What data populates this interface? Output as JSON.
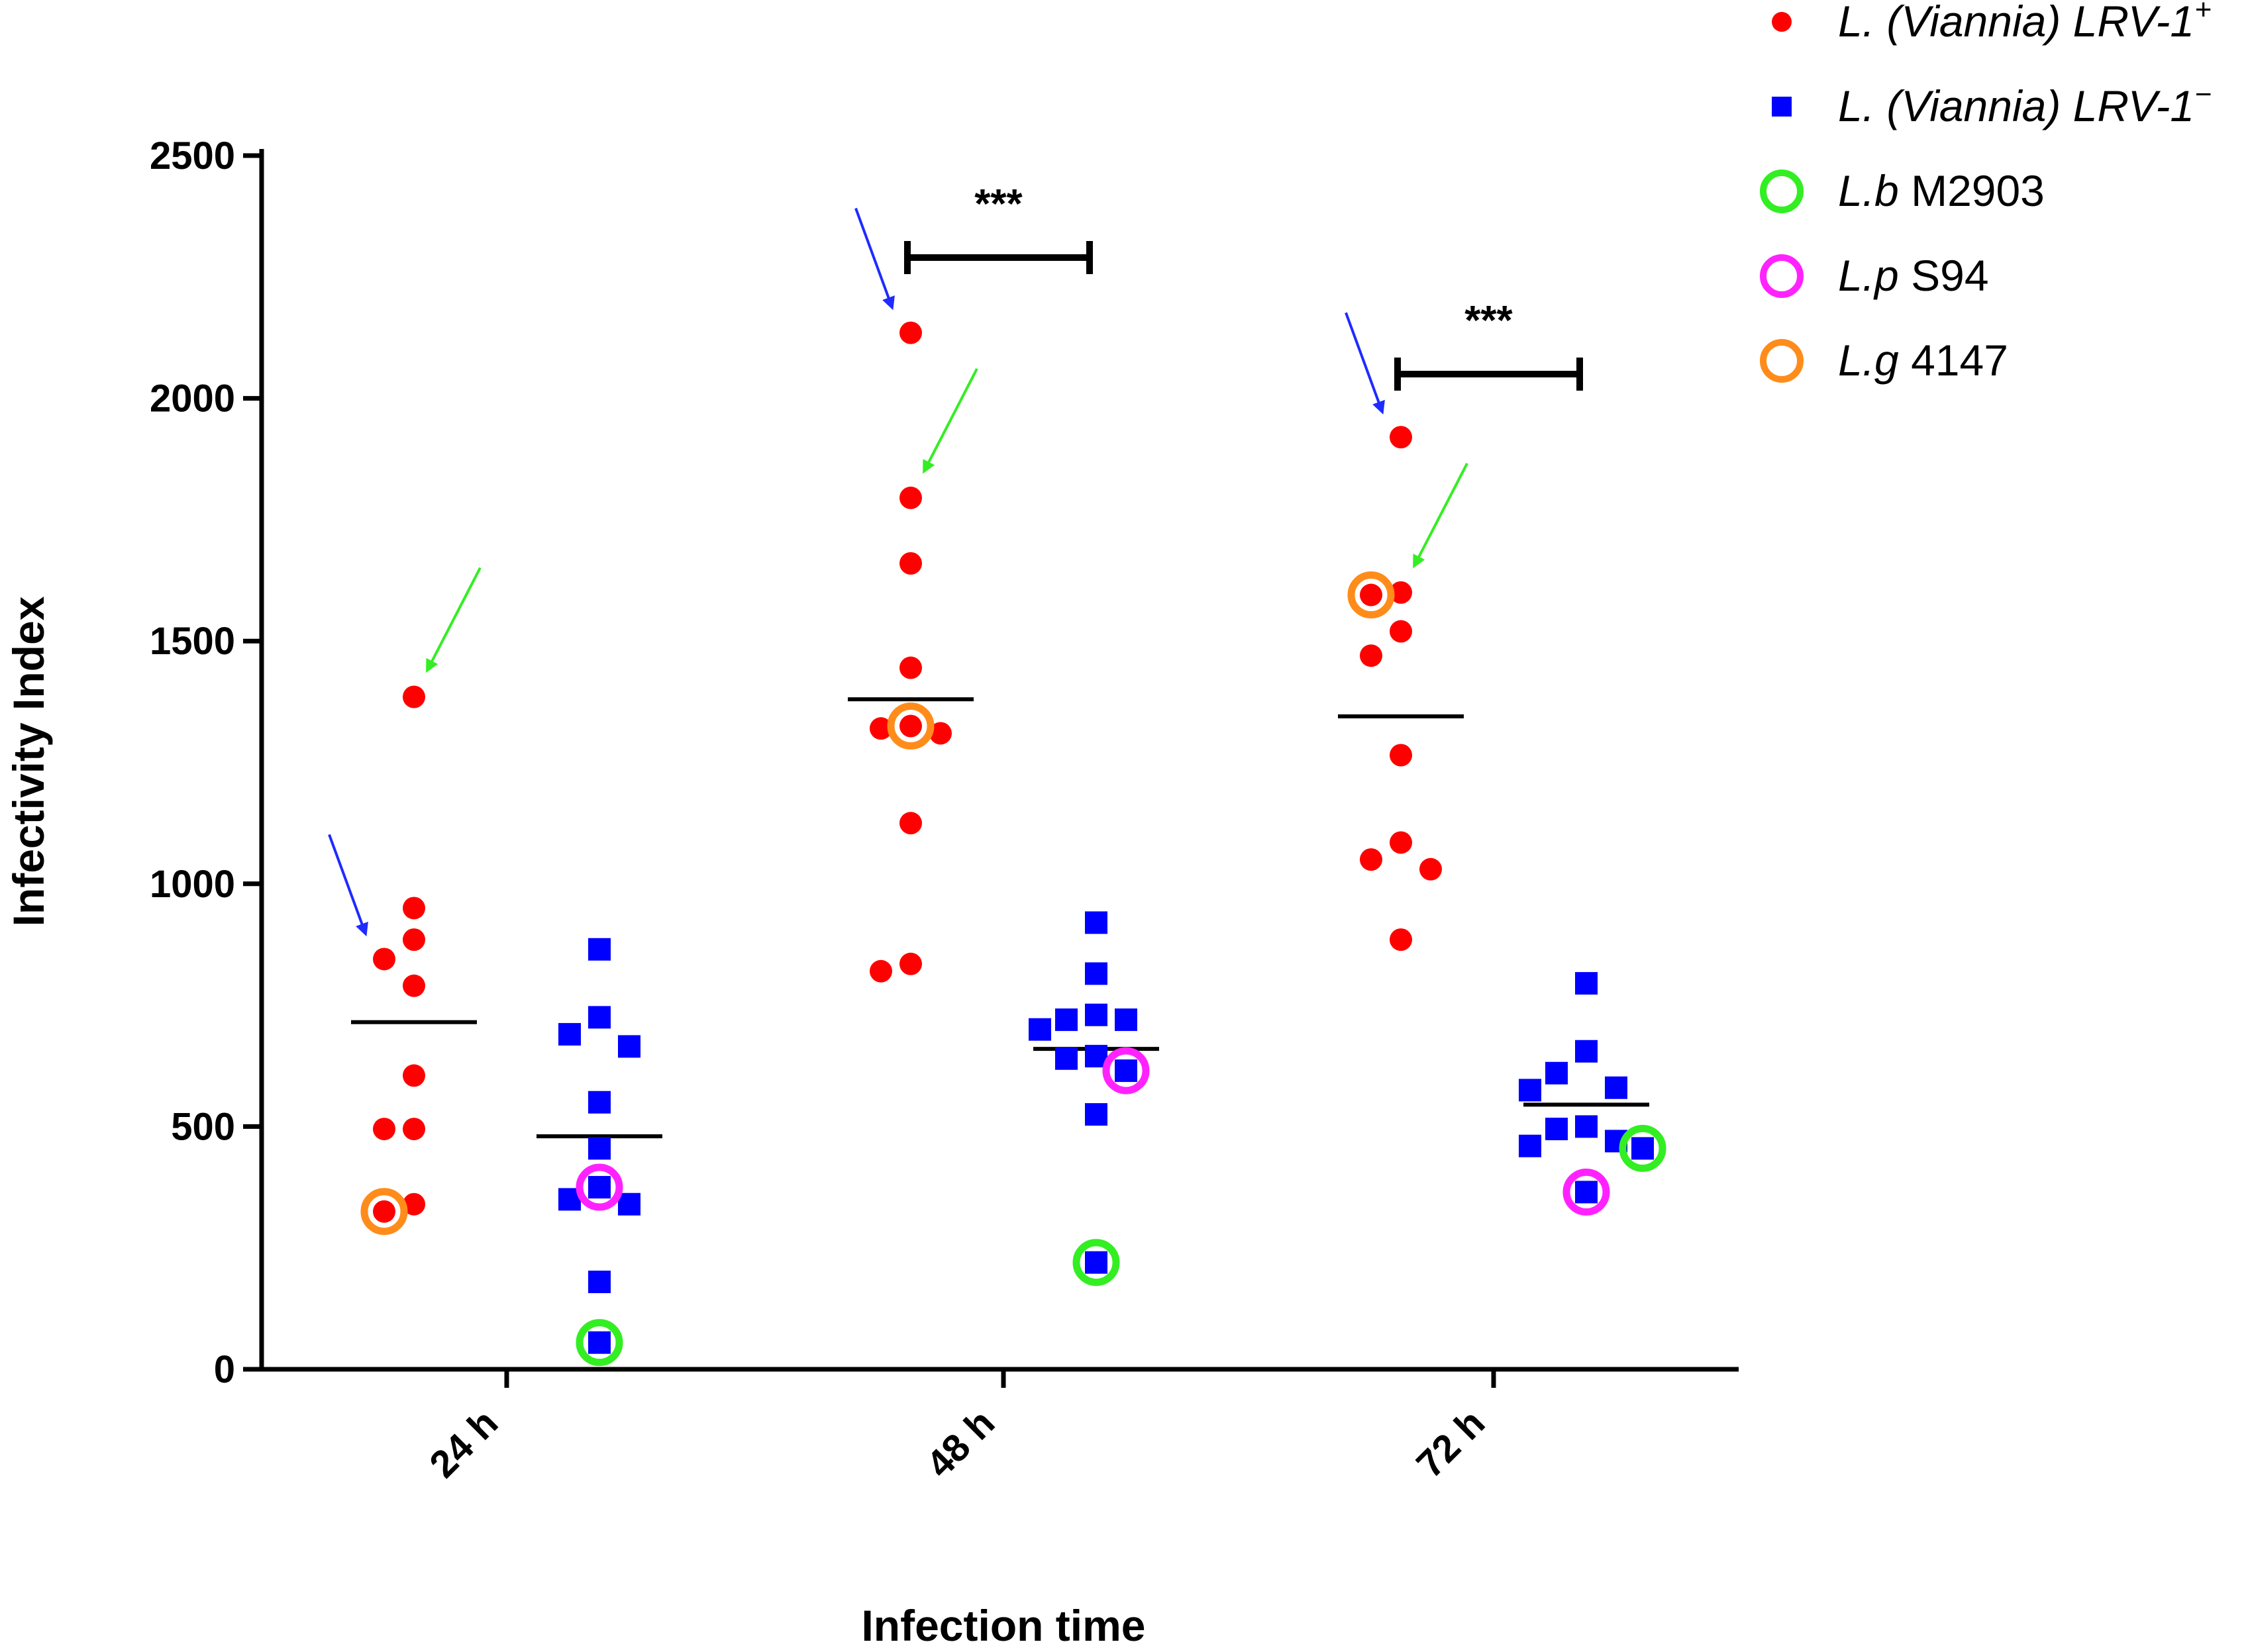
{
  "chart_data": {
    "type": "scatter",
    "title": "",
    "xlabel": "Infection time",
    "ylabel": "Infectivity Index",
    "ylim": [
      0,
      2500
    ],
    "yticks": [
      0,
      500,
      1000,
      1500,
      2000,
      2500
    ],
    "categories": [
      "24 h",
      "48 h",
      "72 h"
    ],
    "colors": {
      "lrv_pos": "#ff0000",
      "lrv_neg": "#0000ff",
      "lb": "#33ee22",
      "lp": "#ff22ff",
      "lg": "#ff8c1a",
      "arrow_blue": "#1f2bff",
      "arrow_green": "#33ee22",
      "axis": "#000000"
    },
    "legend": [
      {
        "key": "lrv_pos",
        "marker": "dot",
        "italic": "L. (Viannia) LRV-1",
        "sup": "+",
        "plain": ""
      },
      {
        "key": "lrv_neg",
        "marker": "square",
        "italic": "L. (Viannia) LRV-1",
        "sup": "−",
        "plain": ""
      },
      {
        "key": "lb",
        "marker": "ring",
        "italic": "L.b",
        "sup": "",
        "plain": " M2903"
      },
      {
        "key": "lp",
        "marker": "ring",
        "italic": "L.p",
        "sup": "",
        "plain": " S94"
      },
      {
        "key": "lg",
        "marker": "ring",
        "italic": "L.g",
        "sup": "",
        "plain": " 4147"
      }
    ],
    "series": [
      {
        "name": "L. (Viannia) LRV-1+",
        "key": "lrv_pos",
        "marker": "dot",
        "groups": [
          {
            "category": "24 h",
            "mean": 715,
            "values": [
              1385,
              950,
              885,
              845,
              790,
              605,
              495,
              495,
              340,
              325
            ]
          },
          {
            "category": "48 h",
            "mean": 1380,
            "values": [
              2135,
              1795,
              1660,
              1445,
              1325,
              1320,
              1310,
              1125,
              835,
              820
            ]
          },
          {
            "category": "72 h",
            "mean": 1345,
            "values": [
              1920,
              1600,
              1595,
              1520,
              1470,
              1265,
              1085,
              1050,
              1030,
              885
            ]
          }
        ]
      },
      {
        "name": "L. (Viannia) LRV-1−",
        "key": "lrv_neg",
        "marker": "square",
        "groups": [
          {
            "category": "24 h",
            "mean": 480,
            "values": [
              865,
              725,
              690,
              665,
              550,
              455,
              375,
              350,
              340,
              180,
              55
            ]
          },
          {
            "category": "48 h",
            "mean": 660,
            "values": [
              920,
              815,
              730,
              720,
              720,
              700,
              645,
              640,
              615,
              525,
              220
            ]
          },
          {
            "category": "72 h",
            "mean": 545,
            "values": [
              795,
              655,
              610,
              575,
              580,
              500,
              495,
              470,
              460,
              455,
              365
            ]
          }
        ]
      }
    ],
    "highlighted": [
      {
        "key": "lb",
        "category": "24 h",
        "value": 55
      },
      {
        "key": "lb",
        "category": "48 h",
        "value": 220
      },
      {
        "key": "lb",
        "category": "72 h",
        "value": 455
      },
      {
        "key": "lp",
        "category": "24 h",
        "value": 375
      },
      {
        "key": "lp",
        "category": "48 h",
        "value": 615
      },
      {
        "key": "lp",
        "category": "72 h",
        "value": 365
      },
      {
        "key": "lg",
        "category": "24 h",
        "value": 325
      },
      {
        "key": "lg",
        "category": "48 h",
        "value": 1325
      },
      {
        "key": "lg",
        "category": "72 h",
        "value": 1595
      }
    ],
    "significance": [
      {
        "category": "48 h",
        "label": "***",
        "level": 2290
      },
      {
        "category": "72 h",
        "label": "***",
        "level": 2050
      }
    ],
    "arrows": [
      {
        "color": "arrow_blue",
        "category": "24 h",
        "target": 845
      },
      {
        "color": "arrow_green",
        "category": "24 h",
        "target": 1385
      },
      {
        "color": "arrow_blue",
        "category": "48 h",
        "target": 2135
      },
      {
        "color": "arrow_green",
        "category": "48 h",
        "target": 1795
      },
      {
        "color": "arrow_blue",
        "category": "72 h",
        "target": 1920
      },
      {
        "color": "arrow_green",
        "category": "72 h",
        "target": 1600
      }
    ]
  }
}
